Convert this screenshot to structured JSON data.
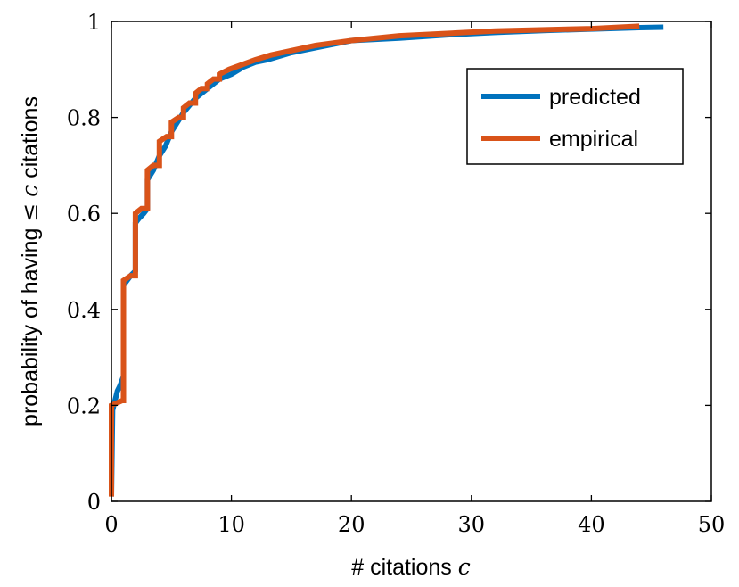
{
  "chart_data": {
    "type": "line",
    "xlabel": "# citations",
    "xlabel_var": "c",
    "ylabel_prefix": "probability of having",
    "ylabel_symbol": "≤",
    "ylabel_var": "c",
    "ylabel_suffix": "citations",
    "xlim": [
      0,
      50
    ],
    "ylim": [
      0,
      1
    ],
    "xticks": [
      "0",
      "10",
      "20",
      "30",
      "40",
      "50"
    ],
    "yticks": [
      "0",
      "0.2",
      "0.4",
      "0.6",
      "0.8",
      "1"
    ],
    "grid": false,
    "legend_position": "top-right",
    "series": [
      {
        "name": "predicted",
        "color": "#0072bd",
        "x": [
          0,
          0.1,
          0.3,
          0.5,
          0.7,
          1.0,
          1.0,
          1.3,
          1.6,
          2.0,
          2.0,
          2.3,
          2.7,
          3.0,
          3.0,
          3.5,
          4.0,
          4.5,
          5.0,
          5.5,
          6.0,
          7.0,
          8.0,
          9.0,
          10.0,
          11.0,
          12.0,
          13.0,
          15.0,
          17.0,
          20.0,
          24.0,
          28.0,
          32.0,
          36.0,
          40.0,
          44.0,
          46.0
        ],
        "y": [
          0.01,
          0.19,
          0.21,
          0.23,
          0.24,
          0.26,
          0.45,
          0.46,
          0.47,
          0.48,
          0.58,
          0.59,
          0.6,
          0.61,
          0.67,
          0.69,
          0.72,
          0.74,
          0.77,
          0.79,
          0.81,
          0.84,
          0.86,
          0.88,
          0.89,
          0.905,
          0.915,
          0.92,
          0.935,
          0.945,
          0.96,
          0.965,
          0.972,
          0.977,
          0.981,
          0.984,
          0.987,
          0.988
        ]
      },
      {
        "name": "empirical",
        "color": "#d95319",
        "x": [
          0,
          0,
          0.9,
          1.0,
          1.0,
          1.6,
          2.0,
          2.0,
          2.5,
          3.0,
          3.0,
          3.5,
          4.0,
          4.0,
          4.6,
          5.0,
          5.0,
          5.6,
          6.0,
          6.0,
          6.5,
          7.0,
          7.0,
          7.5,
          8.0,
          8.0,
          8.5,
          9.0,
          9.0,
          9.8,
          12.0,
          13.3,
          17.0,
          20.0,
          24.0,
          32.0,
          40.0,
          44.0
        ],
        "y": [
          0.01,
          0.2,
          0.21,
          0.21,
          0.46,
          0.47,
          0.47,
          0.6,
          0.61,
          0.61,
          0.69,
          0.7,
          0.7,
          0.75,
          0.76,
          0.76,
          0.79,
          0.8,
          0.8,
          0.82,
          0.83,
          0.83,
          0.85,
          0.86,
          0.86,
          0.87,
          0.88,
          0.88,
          0.89,
          0.9,
          0.92,
          0.93,
          0.95,
          0.96,
          0.97,
          0.98,
          0.985,
          0.99
        ]
      }
    ]
  }
}
